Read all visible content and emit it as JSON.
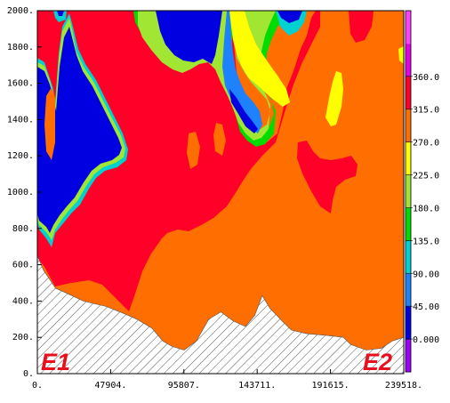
{
  "chart_data": {
    "type": "heatmap",
    "x_ticks": [
      "0.",
      "47904.",
      "95807.",
      "143711.",
      "191615.",
      "239518."
    ],
    "xlim": [
      0,
      239518
    ],
    "y_ticks": [
      "0.",
      "200.",
      "400.",
      "600.",
      "800.",
      "1000.",
      "1200.",
      "1400.",
      "1600.",
      "1800.",
      "2000."
    ],
    "ylim": [
      0,
      2000
    ],
    "colorbar": {
      "labels": [
        "0.000",
        "45.00",
        "90.00",
        "135.0",
        "180.0",
        "225.0",
        "270.0",
        "315.0",
        "360.0"
      ],
      "colors": [
        "#9e00ff",
        "#0000e0",
        "#1e82ff",
        "#00d2d2",
        "#00dc00",
        "#a0e632",
        "#ffff00",
        "#ff6e00",
        "#ff0028",
        "#e600e6",
        "#ff40ff"
      ],
      "range": [
        0,
        360
      ]
    },
    "annotations": [
      "E1",
      "E2"
    ],
    "terrain_profile": {
      "x": [
        0,
        4000,
        12000,
        20000,
        30000,
        45000,
        57000,
        65000,
        75000,
        82000,
        88000,
        96000,
        104000,
        112000,
        120000,
        128000,
        136000,
        142000,
        147000,
        152000,
        160000,
        166000,
        176000,
        190000,
        200000,
        205000,
        215000,
        225000,
        232000,
        239518
      ],
      "y": [
        650,
        570,
        470,
        440,
        400,
        370,
        330,
        300,
        250,
        180,
        150,
        130,
        180,
        300,
        340,
        290,
        260,
        320,
        430,
        360,
        290,
        240,
        220,
        210,
        200,
        160,
        130,
        140,
        180,
        200
      ],
      "hatch": "#555555"
    },
    "regions": [
      {
        "name": "direction-270-315",
        "color": "#ff6e00"
      },
      {
        "name": "direction-315-360",
        "color": "#ff0028"
      },
      {
        "name": "direction-0-45",
        "color": "#0000e0"
      },
      {
        "name": "direction-45-90",
        "color": "#1e82ff"
      },
      {
        "name": "direction-90-135",
        "color": "#00d2d2"
      },
      {
        "name": "direction-135-180",
        "color": "#00dc00"
      },
      {
        "name": "direction-180-225",
        "color": "#a0e632"
      },
      {
        "name": "direction-225-270",
        "color": "#ffff00"
      }
    ]
  }
}
